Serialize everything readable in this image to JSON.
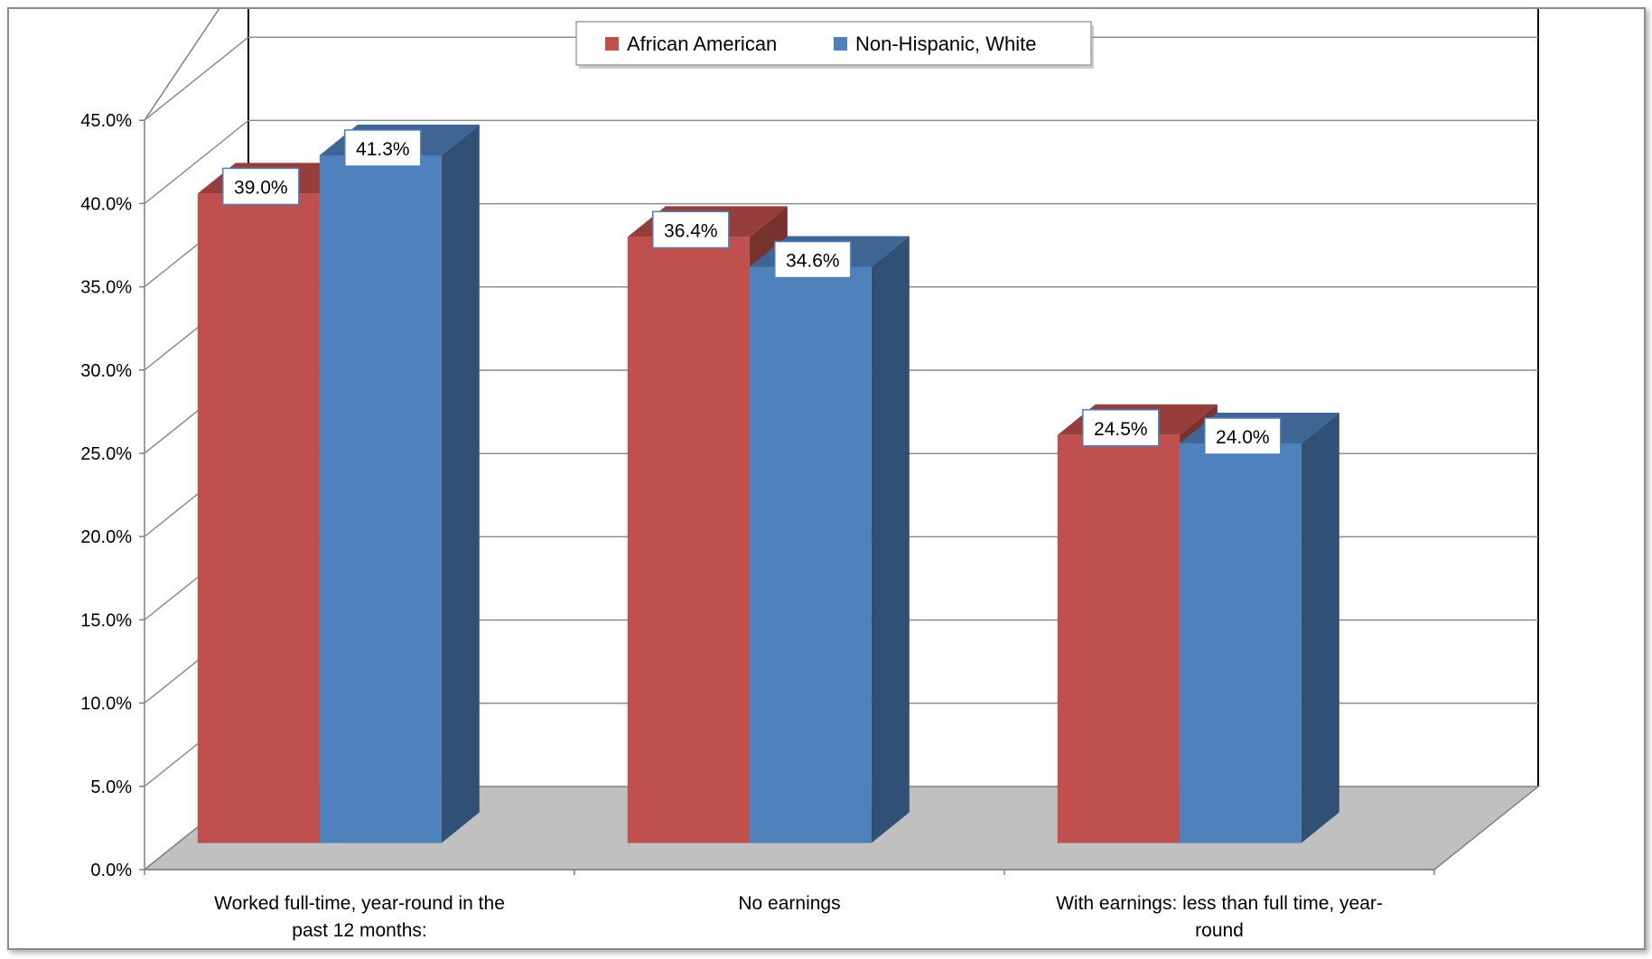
{
  "chart_data": {
    "type": "bar",
    "categories": [
      "Worked full-time, year-round in the past 12 months:",
      "No earnings",
      "With earnings: less than full time, year-round"
    ],
    "category_label_lines": [
      [
        "Worked full-time, year-round in the",
        "past 12 months:"
      ],
      [
        "No earnings"
      ],
      [
        "With earnings: less than full time, year-",
        "round"
      ]
    ],
    "series": [
      {
        "name": "African American",
        "values": [
          39.0,
          36.4,
          24.5
        ],
        "labels": [
          "39.0%",
          "36.4%",
          "24.5%"
        ],
        "color": "#c0504d"
      },
      {
        "name": "Non-Hispanic, White",
        "values": [
          41.3,
          34.6,
          24.0
        ],
        "labels": [
          "41.3%",
          "34.6%",
          "24.0%"
        ],
        "color": "#4f81bd"
      }
    ],
    "ylim": [
      0,
      45
    ],
    "yticks": [
      "0.0%",
      "5.0%",
      "10.0%",
      "15.0%",
      "20.0%",
      "25.0%",
      "30.0%",
      "35.0%",
      "40.0%",
      "45.0%"
    ],
    "xlabel": "",
    "ylabel": "",
    "title": "",
    "grid": true,
    "legend_position": "top",
    "style": "3d-clustered-column"
  }
}
